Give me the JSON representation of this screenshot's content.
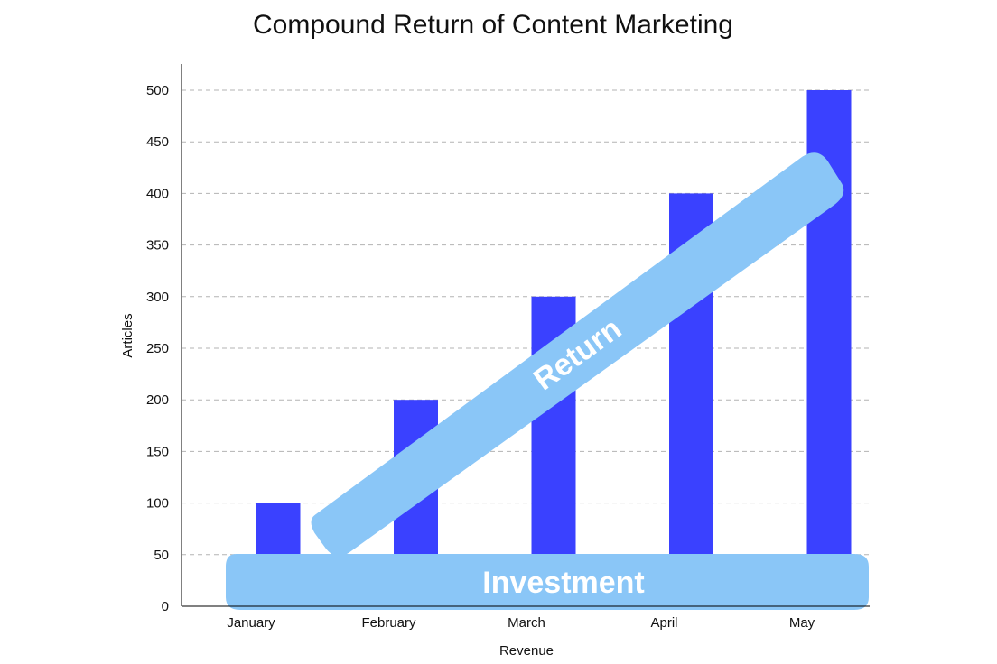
{
  "chart_data": {
    "type": "bar",
    "title": "Compound Return of Content Marketing",
    "xlabel": "Revenue",
    "ylabel": "Articles",
    "categories": [
      "January",
      "February",
      "March",
      "April",
      "May"
    ],
    "values": [
      100,
      200,
      300,
      400,
      500
    ],
    "ylim": [
      0,
      525
    ],
    "yticks": [
      0,
      50,
      100,
      150,
      200,
      250,
      300,
      350,
      400,
      450,
      500
    ],
    "grid": true,
    "bar_color": "#3a41ff",
    "annotations": [
      {
        "text": "Investment",
        "color": "#8ac6f7"
      },
      {
        "text": "Return",
        "color": "#8ac6f7"
      }
    ]
  }
}
